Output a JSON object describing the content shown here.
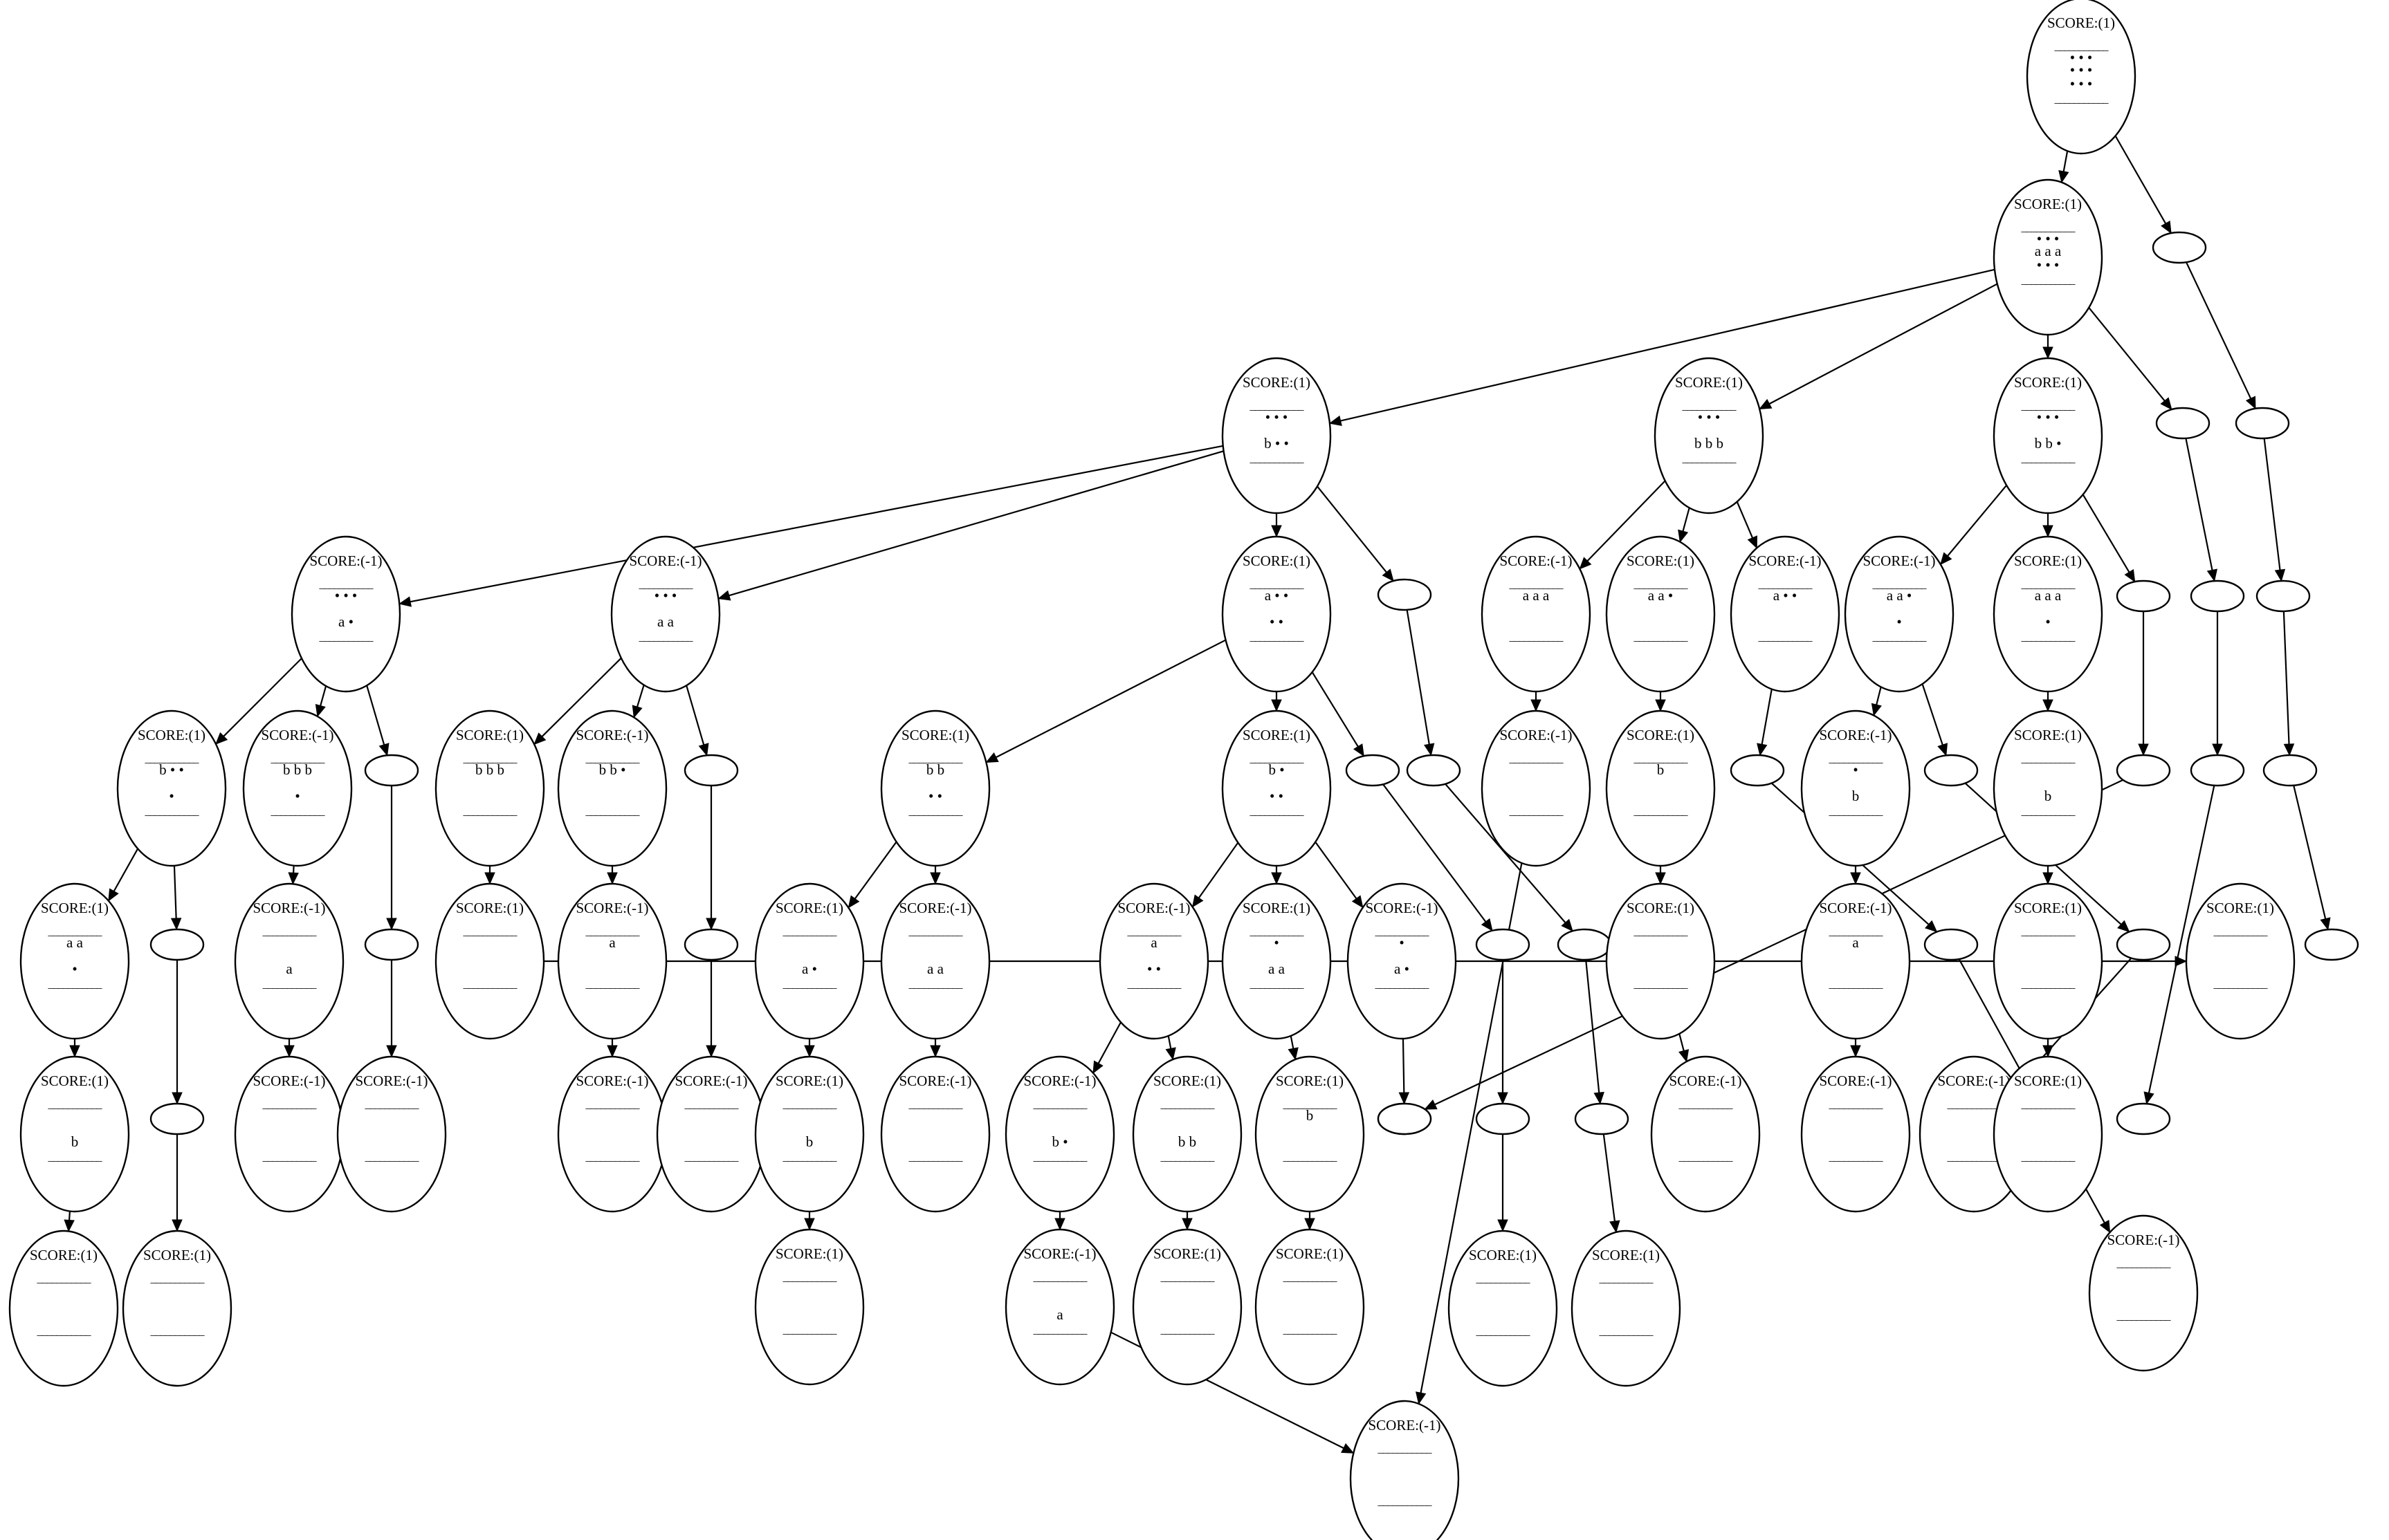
{
  "diagram": {
    "nodes": [
      {
        "id": "n0",
        "lines": [
          "SCORE:(1)",
          "___________",
          "• • •",
          "• • •",
          "• • •",
          "___________"
        ]
      },
      {
        "id": "n1",
        "lines": [
          "SCORE:(1)",
          "___________",
          "• • •",
          "a a a",
          "• • •",
          "___________"
        ]
      },
      {
        "id": "n2",
        "lines": []
      },
      {
        "id": "n3",
        "lines": [
          "SCORE:(1)",
          "___________",
          "• • •",
          "",
          "b • •",
          "___________"
        ]
      },
      {
        "id": "n4",
        "lines": [
          "SCORE:(1)",
          "___________",
          "• • •",
          "",
          "b b b",
          "___________"
        ]
      },
      {
        "id": "n5",
        "lines": [
          "SCORE:(1)",
          "___________",
          "• • •",
          "",
          "b b •",
          "___________"
        ]
      },
      {
        "id": "n6",
        "lines": []
      },
      {
        "id": "n7",
        "lines": []
      },
      {
        "id": "n8",
        "lines": [
          "SCORE:(-1)",
          "___________",
          "• • •",
          "",
          "a •",
          "___________"
        ]
      },
      {
        "id": "n9",
        "lines": [
          "SCORE:(-1)",
          "___________",
          "• • •",
          "",
          "a a",
          "___________"
        ]
      },
      {
        "id": "n10",
        "lines": [
          "SCORE:(1)",
          "___________",
          "a • •",
          "",
          "• •",
          "___________"
        ]
      },
      {
        "id": "n11",
        "lines": []
      },
      {
        "id": "n12",
        "lines": [
          "SCORE:(-1)",
          "___________",
          "a a a",
          "",
          "",
          "___________"
        ]
      },
      {
        "id": "n13",
        "lines": [
          "SCORE:(1)",
          "___________",
          "a a •",
          "",
          "",
          "___________"
        ]
      },
      {
        "id": "n14",
        "lines": [
          "SCORE:(-1)",
          "___________",
          "a • •",
          "",
          "",
          "___________"
        ]
      },
      {
        "id": "n15",
        "lines": [
          "SCORE:(-1)",
          "___________",
          "a a •",
          "",
          "•",
          "___________"
        ]
      },
      {
        "id": "n16",
        "lines": [
          "SCORE:(1)",
          "___________",
          "a a a",
          "",
          "•",
          "___________"
        ]
      },
      {
        "id": "n17",
        "lines": []
      },
      {
        "id": "n18",
        "lines": []
      },
      {
        "id": "n19",
        "lines": []
      },
      {
        "id": "n20",
        "lines": [
          "SCORE:(1)",
          "___________",
          "b • •",
          "",
          "•",
          "___________"
        ]
      },
      {
        "id": "n21",
        "lines": [
          "SCORE:(-1)",
          "___________",
          "b b b",
          "",
          "•",
          "___________"
        ]
      },
      {
        "id": "n22",
        "lines": []
      },
      {
        "id": "n23",
        "lines": [
          "SCORE:(1)",
          "___________",
          "b b b",
          "",
          "",
          "___________"
        ]
      },
      {
        "id": "n24",
        "lines": [
          "SCORE:(-1)",
          "___________",
          "b b •",
          "",
          "",
          "___________"
        ]
      },
      {
        "id": "n25",
        "lines": []
      },
      {
        "id": "n26",
        "lines": [
          "SCORE:(1)",
          "___________",
          "b b",
          "",
          "• •",
          "___________"
        ]
      },
      {
        "id": "n27",
        "lines": [
          "SCORE:(1)",
          "___________",
          "b •",
          "",
          "• •",
          "___________"
        ]
      },
      {
        "id": "n28",
        "lines": []
      },
      {
        "id": "n29",
        "lines": []
      },
      {
        "id": "n30",
        "lines": [
          "SCORE:(-1)",
          "___________",
          "",
          "",
          "",
          "___________"
        ]
      },
      {
        "id": "n31",
        "lines": [
          "SCORE:(1)",
          "___________",
          "b",
          "",
          "",
          "___________"
        ]
      },
      {
        "id": "n32",
        "lines": []
      },
      {
        "id": "n33",
        "lines": [
          "SCORE:(-1)",
          "___________",
          "•",
          "",
          "b",
          "___________"
        ]
      },
      {
        "id": "n34",
        "lines": []
      },
      {
        "id": "n35",
        "lines": [
          "SCORE:(1)",
          "___________",
          "",
          "",
          "b",
          "___________"
        ]
      },
      {
        "id": "n36",
        "lines": []
      },
      {
        "id": "n37",
        "lines": []
      },
      {
        "id": "n38",
        "lines": []
      },
      {
        "id": "n39",
        "lines": [
          "SCORE:(1)",
          "___________",
          "a a",
          "",
          "•",
          "___________"
        ]
      },
      {
        "id": "n40",
        "lines": []
      },
      {
        "id": "n41",
        "lines": [
          "SCORE:(-1)",
          "___________",
          "",
          "",
          "a",
          "___________"
        ]
      },
      {
        "id": "n42",
        "lines": []
      },
      {
        "id": "n43",
        "lines": [
          "SCORE:(1)",
          "___________",
          "",
          "",
          "",
          "___________"
        ]
      },
      {
        "id": "n44",
        "lines": [
          "SCORE:(-1)",
          "___________",
          "a",
          "",
          "",
          "___________"
        ]
      },
      {
        "id": "n45",
        "lines": []
      },
      {
        "id": "n46",
        "lines": [
          "SCORE:(1)",
          "___________",
          "",
          "",
          "a •",
          "___________"
        ]
      },
      {
        "id": "n47",
        "lines": [
          "SCORE:(-1)",
          "___________",
          "",
          "",
          "a a",
          "___________"
        ]
      },
      {
        "id": "n48",
        "lines": [
          "SCORE:(-1)",
          "___________",
          "a",
          "",
          "• •",
          "___________"
        ]
      },
      {
        "id": "n49",
        "lines": [
          "SCORE:(1)",
          "___________",
          "•",
          "",
          "a a",
          "___________"
        ]
      },
      {
        "id": "n50",
        "lines": [
          "SCORE:(-1)",
          "___________",
          "•",
          "",
          "a •",
          "___________"
        ]
      },
      {
        "id": "n51",
        "lines": []
      },
      {
        "id": "n52",
        "lines": []
      },
      {
        "id": "n53",
        "lines": [
          "SCORE:(1)",
          "___________",
          "",
          "",
          "",
          "___________"
        ]
      },
      {
        "id": "n54",
        "lines": [
          "SCORE:(-1)",
          "___________",
          "a",
          "",
          "",
          "___________"
        ]
      },
      {
        "id": "n55",
        "lines": []
      },
      {
        "id": "n56",
        "lines": [
          "SCORE:(1)",
          "___________",
          "",
          "",
          "",
          "___________"
        ]
      },
      {
        "id": "n57",
        "lines": []
      },
      {
        "id": "n58",
        "lines": [
          "SCORE:(1)",
          "___________",
          "",
          "",
          "b",
          "___________"
        ]
      },
      {
        "id": "n59",
        "lines": []
      },
      {
        "id": "n60",
        "lines": [
          "SCORE:(-1)",
          "___________",
          "",
          "",
          "",
          "___________"
        ]
      },
      {
        "id": "n61",
        "lines": [
          "SCORE:(-1)",
          "___________",
          "",
          "",
          "",
          "___________"
        ]
      },
      {
        "id": "n62",
        "lines": [
          "SCORE:(-1)",
          "___________",
          "",
          "",
          "",
          "___________"
        ]
      },
      {
        "id": "n63",
        "lines": [
          "SCORE:(-1)",
          "___________",
          "",
          "",
          "",
          "___________"
        ]
      },
      {
        "id": "n64",
        "lines": [
          "SCORE:(1)",
          "___________",
          "",
          "",
          "b",
          "___________"
        ]
      },
      {
        "id": "n65",
        "lines": [
          "SCORE:(-1)",
          "___________",
          "",
          "",
          "",
          "___________"
        ]
      },
      {
        "id": "n66",
        "lines": [
          "SCORE:(-1)",
          "___________",
          "",
          "",
          "b •",
          "___________"
        ]
      },
      {
        "id": "n67",
        "lines": [
          "SCORE:(1)",
          "___________",
          "",
          "",
          "b b",
          "___________"
        ]
      },
      {
        "id": "n68",
        "lines": [
          "SCORE:(1)",
          "___________",
          "b",
          "",
          "",
          "___________"
        ]
      },
      {
        "id": "n69",
        "lines": []
      },
      {
        "id": "n70",
        "lines": []
      },
      {
        "id": "n71",
        "lines": []
      },
      {
        "id": "n72",
        "lines": [
          "SCORE:(-1)",
          "___________",
          "",
          "",
          "",
          "___________"
        ]
      },
      {
        "id": "n73",
        "lines": [
          "SCORE:(-1)",
          "___________",
          "",
          "",
          "",
          "___________"
        ]
      },
      {
        "id": "n74",
        "lines": [
          "SCORE:(-1)",
          "___________",
          "",
          "",
          "",
          "___________"
        ]
      },
      {
        "id": "n75",
        "lines": []
      },
      {
        "id": "n76",
        "lines": []
      },
      {
        "id": "n77",
        "lines": [
          "SCORE:(1)",
          "___________",
          "",
          "",
          "",
          "___________"
        ]
      },
      {
        "id": "n78",
        "lines": [
          "SCORE:(1)",
          "___________",
          "",
          "",
          "",
          "___________"
        ]
      },
      {
        "id": "n79",
        "lines": [
          "SCORE:(1)",
          "___________",
          "",
          "",
          "",
          "___________"
        ]
      },
      {
        "id": "n80",
        "lines": [
          "SCORE:(-1)",
          "___________",
          "",
          "",
          "a",
          "___________"
        ]
      },
      {
        "id": "n81",
        "lines": [
          "SCORE:(1)",
          "___________",
          "",
          "",
          "",
          "___________"
        ]
      },
      {
        "id": "n82",
        "lines": [
          "SCORE:(1)",
          "___________",
          "",
          "",
          "",
          "___________"
        ]
      },
      {
        "id": "n83",
        "lines": []
      },
      {
        "id": "n84",
        "lines": [
          "SCORE:(1)",
          "___________",
          "",
          "",
          "",
          "___________"
        ]
      },
      {
        "id": "n85",
        "lines": [
          "SCORE:(1)",
          "___________",
          "",
          "",
          "",
          "___________"
        ]
      },
      {
        "id": "n86",
        "lines": [
          "SCORE:(1)",
          "___________",
          "",
          "",
          "",
          "___________"
        ]
      },
      {
        "id": "n87",
        "lines": [
          "SCORE:(1)",
          "___________",
          "",
          "",
          "",
          "___________"
        ]
      },
      {
        "id": "n88",
        "lines": [
          "SCORE:(-1)",
          "___________",
          "",
          "",
          "",
          "___________"
        ]
      },
      {
        "id": "n89",
        "lines": [
          "SCORE:(-1)",
          "___________",
          "",
          "",
          "",
          "___________"
        ]
      }
    ],
    "edges": [
      [
        "n0",
        "n1"
      ],
      [
        "n0",
        "n2"
      ],
      [
        "n1",
        "n3"
      ],
      [
        "n1",
        "n4"
      ],
      [
        "n1",
        "n5"
      ],
      [
        "n1",
        "n6"
      ],
      [
        "n2",
        "n7"
      ],
      [
        "n3",
        "n8"
      ],
      [
        "n3",
        "n9"
      ],
      [
        "n3",
        "n10"
      ],
      [
        "n3",
        "n11"
      ],
      [
        "n4",
        "n12"
      ],
      [
        "n4",
        "n13"
      ],
      [
        "n4",
        "n14"
      ],
      [
        "n5",
        "n15"
      ],
      [
        "n5",
        "n16"
      ],
      [
        "n5",
        "n17"
      ],
      [
        "n6",
        "n18"
      ],
      [
        "n7",
        "n19"
      ],
      [
        "n8",
        "n20"
      ],
      [
        "n8",
        "n21"
      ],
      [
        "n8",
        "n22"
      ],
      [
        "n9",
        "n23"
      ],
      [
        "n9",
        "n24"
      ],
      [
        "n9",
        "n25"
      ],
      [
        "n10",
        "n26"
      ],
      [
        "n10",
        "n27"
      ],
      [
        "n10",
        "n28"
      ],
      [
        "n11",
        "n29"
      ],
      [
        "n12",
        "n30"
      ],
      [
        "n13",
        "n31"
      ],
      [
        "n14",
        "n32"
      ],
      [
        "n15",
        "n33"
      ],
      [
        "n15",
        "n34"
      ],
      [
        "n16",
        "n35"
      ],
      [
        "n17",
        "n36"
      ],
      [
        "n18",
        "n37"
      ],
      [
        "n19",
        "n38"
      ],
      [
        "n20",
        "n39"
      ],
      [
        "n20",
        "n40"
      ],
      [
        "n21",
        "n41"
      ],
      [
        "n22",
        "n42"
      ],
      [
        "n23",
        "n43"
      ],
      [
        "n24",
        "n44"
      ],
      [
        "n25",
        "n45"
      ],
      [
        "n26",
        "n46"
      ],
      [
        "n26",
        "n47"
      ],
      [
        "n27",
        "n48"
      ],
      [
        "n27",
        "n49"
      ],
      [
        "n27",
        "n50"
      ],
      [
        "n28",
        "n51"
      ],
      [
        "n29",
        "n52"
      ],
      [
        "n30",
        "n89"
      ],
      [
        "n31",
        "n53"
      ],
      [
        "n32",
        "n55"
      ],
      [
        "n33",
        "n54"
      ],
      [
        "n34",
        "n57"
      ],
      [
        "n35",
        "n56"
      ],
      [
        "n36",
        "n59"
      ],
      [
        "n37",
        "n83"
      ],
      [
        "n38",
        "n70"
      ],
      [
        "n39",
        "n58"
      ],
      [
        "n40",
        "n69"
      ],
      [
        "n41",
        "n60"
      ],
      [
        "n42",
        "n61"
      ],
      [
        "n43",
        "n78"
      ],
      [
        "n44",
        "n62"
      ],
      [
        "n45",
        "n63"
      ],
      [
        "n46",
        "n64"
      ],
      [
        "n47",
        "n65"
      ],
      [
        "n48",
        "n66"
      ],
      [
        "n48",
        "n67"
      ],
      [
        "n49",
        "n68"
      ],
      [
        "n50",
        "n71"
      ],
      [
        "n51",
        "n75"
      ],
      [
        "n52",
        "n76"
      ],
      [
        "n53",
        "n73"
      ],
      [
        "n54",
        "n72"
      ],
      [
        "n55",
        "n88"
      ],
      [
        "n56",
        "n79"
      ],
      [
        "n57",
        "n74"
      ],
      [
        "n58",
        "n77"
      ],
      [
        "n64",
        "n81"
      ],
      [
        "n66",
        "n80"
      ],
      [
        "n67",
        "n82"
      ],
      [
        "n68",
        "n84"
      ],
      [
        "n69",
        "n85"
      ],
      [
        "n75",
        "n86"
      ],
      [
        "n76",
        "n87"
      ],
      [
        "n80",
        "n89"
      ],
      [
        "n71",
        "n59"
      ]
    ]
  }
}
